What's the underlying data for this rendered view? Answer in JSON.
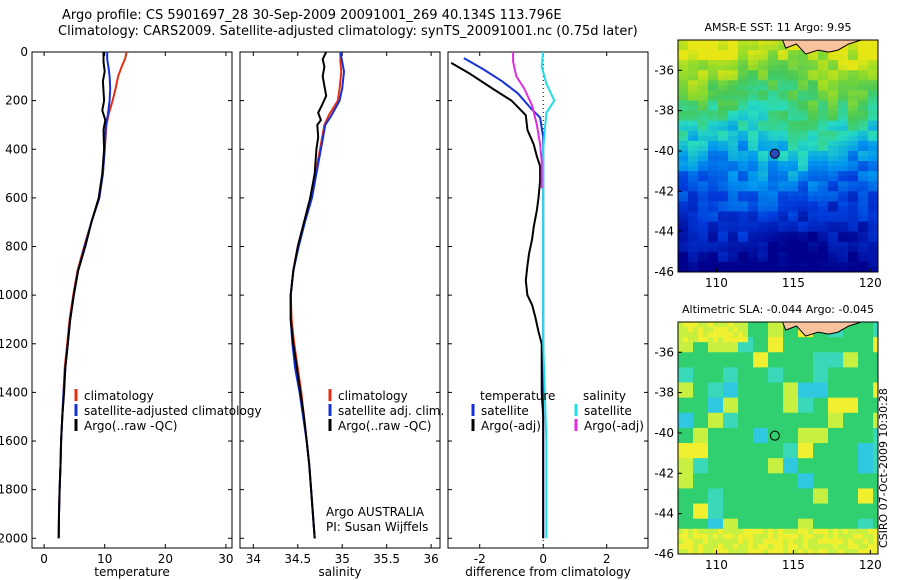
{
  "header": {
    "title_line1": "Argo profile: CS 5901697_28 30-Sep-2009 20091001_269 40.134S 113.796E",
    "title_line2": "Climatology: CARS2009. Satellite-adjusted climatology: synTS_20091001.nc (0.75d later)"
  },
  "colors": {
    "climatology": "#e52d14",
    "satellite": "#1532d8",
    "argo": "#000000",
    "sal_satellite": "#22dde8",
    "sal_argo": "#e02ce0",
    "land": "#f7c29c"
  },
  "chart_data": [
    {
      "type": "line",
      "xlabel": "temperature",
      "xlim": [
        -2,
        31
      ],
      "ylim": [
        2040,
        0
      ],
      "xticks": [
        0,
        10,
        20,
        30
      ],
      "yticks": [
        0,
        200,
        400,
        600,
        800,
        1000,
        1200,
        1400,
        1600,
        1800,
        2000
      ],
      "legend": [
        "climatology",
        "satellite-adjusted climatology",
        "Argo(..raw -QC)"
      ],
      "series": [
        {
          "name": "climatology",
          "color": "#e52d14",
          "points": [
            [
              13.6,
              0
            ],
            [
              13.4,
              25
            ],
            [
              12.8,
              60
            ],
            [
              12.2,
              100
            ],
            [
              11.8,
              150
            ],
            [
              11.3,
              200
            ],
            [
              10.6,
              260
            ],
            [
              10.3,
              300
            ],
            [
              10.0,
              400
            ],
            [
              9.7,
              500
            ],
            [
              9.1,
              600
            ],
            [
              7.8,
              700
            ],
            [
              6.6,
              800
            ],
            [
              5.5,
              900
            ],
            [
              4.8,
              1000
            ],
            [
              4.2,
              1100
            ],
            [
              3.8,
              1200
            ],
            [
              3.4,
              1300
            ],
            [
              3.2,
              1400
            ],
            [
              3.0,
              1500
            ],
            [
              2.8,
              1600
            ],
            [
              2.7,
              1700
            ],
            [
              2.55,
              1800
            ],
            [
              2.45,
              1900
            ],
            [
              2.4,
              2000
            ]
          ]
        },
        {
          "name": "satellite-adjusted climatology",
          "color": "#1532d8",
          "points": [
            [
              10.4,
              0
            ],
            [
              10.4,
              30
            ],
            [
              10.6,
              60
            ],
            [
              10.8,
              100
            ],
            [
              10.9,
              150
            ],
            [
              10.8,
              200
            ],
            [
              10.5,
              260
            ],
            [
              10.2,
              300
            ],
            [
              10.0,
              400
            ],
            [
              9.7,
              500
            ],
            [
              9.1,
              600
            ],
            [
              7.8,
              700
            ],
            [
              6.7,
              800
            ],
            [
              5.6,
              900
            ],
            [
              4.9,
              1000
            ],
            [
              4.3,
              1100
            ],
            [
              3.9,
              1200
            ],
            [
              3.5,
              1300
            ],
            [
              3.2,
              1400
            ],
            [
              3.0,
              1500
            ],
            [
              2.8,
              1600
            ],
            [
              2.7,
              1700
            ],
            [
              2.55,
              1800
            ],
            [
              2.45,
              1900
            ],
            [
              2.4,
              2000
            ]
          ]
        },
        {
          "name": "Argo(..raw -QC)",
          "color": "#000000",
          "points": [
            [
              9.8,
              0
            ],
            [
              9.8,
              40
            ],
            [
              10.0,
              80
            ],
            [
              9.7,
              120
            ],
            [
              9.8,
              160
            ],
            [
              9.9,
              200
            ],
            [
              9.6,
              240
            ],
            [
              10.1,
              280
            ],
            [
              9.8,
              320
            ],
            [
              9.9,
              400
            ],
            [
              9.6,
              500
            ],
            [
              9.0,
              600
            ],
            [
              7.8,
              700
            ],
            [
              6.8,
              800
            ],
            [
              5.6,
              900
            ],
            [
              4.9,
              1000
            ],
            [
              4.3,
              1100
            ],
            [
              3.9,
              1200
            ],
            [
              3.5,
              1300
            ],
            [
              3.3,
              1400
            ],
            [
              3.0,
              1500
            ],
            [
              2.8,
              1600
            ],
            [
              2.7,
              1700
            ],
            [
              2.55,
              1800
            ],
            [
              2.45,
              1900
            ],
            [
              2.4,
              2000
            ]
          ]
        }
      ]
    },
    {
      "type": "line",
      "xlabel": "salinity",
      "xlim": [
        33.85,
        36.1
      ],
      "ylim": [
        2040,
        0
      ],
      "xticks": [
        34,
        34.5,
        35,
        35.5,
        36
      ],
      "legend": [
        "climatology",
        "satellite adj. clim.",
        "Argo(..raw -QC)"
      ],
      "annotation": [
        "Argo AUSTRALIA",
        "PI: Susan Wijffels"
      ],
      "series": [
        {
          "name": "climatology",
          "color": "#e52d14",
          "points": [
            [
              34.98,
              0
            ],
            [
              34.98,
              40
            ],
            [
              34.99,
              80
            ],
            [
              34.97,
              150
            ],
            [
              34.95,
              200
            ],
            [
              34.85,
              260
            ],
            [
              34.8,
              300
            ],
            [
              34.75,
              400
            ],
            [
              34.7,
              500
            ],
            [
              34.65,
              600
            ],
            [
              34.57,
              700
            ],
            [
              34.5,
              800
            ],
            [
              34.45,
              900
            ],
            [
              34.42,
              1000
            ],
            [
              34.43,
              1100
            ],
            [
              34.46,
              1200
            ],
            [
              34.5,
              1300
            ],
            [
              34.54,
              1400
            ],
            [
              34.57,
              1500
            ],
            [
              34.6,
              1600
            ],
            [
              34.63,
              1700
            ],
            [
              34.65,
              1800
            ],
            [
              34.67,
              1900
            ],
            [
              34.69,
              2000
            ]
          ]
        },
        {
          "name": "satellite adj. clim.",
          "color": "#1532d8",
          "points": [
            [
              34.98,
              0
            ],
            [
              35.0,
              40
            ],
            [
              35.02,
              80
            ],
            [
              35.0,
              150
            ],
            [
              34.97,
              200
            ],
            [
              34.88,
              260
            ],
            [
              34.81,
              300
            ],
            [
              34.76,
              400
            ],
            [
              34.71,
              500
            ],
            [
              34.66,
              600
            ],
            [
              34.58,
              700
            ],
            [
              34.51,
              800
            ],
            [
              34.45,
              900
            ],
            [
              34.42,
              1000
            ],
            [
              34.42,
              1100
            ],
            [
              34.44,
              1200
            ],
            [
              34.47,
              1300
            ],
            [
              34.52,
              1400
            ],
            [
              34.56,
              1500
            ],
            [
              34.6,
              1600
            ],
            [
              34.63,
              1700
            ],
            [
              34.65,
              1800
            ],
            [
              34.67,
              1900
            ],
            [
              34.69,
              2000
            ]
          ]
        },
        {
          "name": "Argo(..raw -QC)",
          "color": "#000000",
          "points": [
            [
              34.82,
              0
            ],
            [
              34.78,
              30
            ],
            [
              34.8,
              60
            ],
            [
              34.78,
              100
            ],
            [
              34.8,
              140
            ],
            [
              34.82,
              180
            ],
            [
              34.77,
              220
            ],
            [
              34.73,
              250
            ],
            [
              34.76,
              280
            ],
            [
              34.72,
              300
            ],
            [
              34.73,
              350
            ],
            [
              34.71,
              400
            ],
            [
              34.69,
              500
            ],
            [
              34.64,
              600
            ],
            [
              34.57,
              700
            ],
            [
              34.5,
              800
            ],
            [
              34.45,
              900
            ],
            [
              34.42,
              1000
            ],
            [
              34.42,
              1100
            ],
            [
              34.45,
              1200
            ],
            [
              34.49,
              1300
            ],
            [
              34.53,
              1400
            ],
            [
              34.57,
              1500
            ],
            [
              34.6,
              1600
            ],
            [
              34.63,
              1700
            ],
            [
              34.65,
              1800
            ],
            [
              34.67,
              1900
            ],
            [
              34.69,
              2000
            ]
          ]
        }
      ]
    },
    {
      "type": "line",
      "xlabel": "difference from climatology",
      "xlim": [
        -3,
        3.3
      ],
      "ylim": [
        2040,
        0
      ],
      "xticks": [
        -2,
        0,
        2
      ],
      "legend_left_heading": "temperature",
      "legend_right_heading": "salinity",
      "legend": [
        "satellite",
        "Argo(-adj)",
        "satellite",
        "Argo(-adj)"
      ],
      "series": [
        {
          "name": "satellite",
          "group": "temperature",
          "color": "#1532d8",
          "points": [
            [
              -2.5,
              25
            ],
            [
              -1.9,
              70
            ],
            [
              -1.3,
              120
            ],
            [
              -0.8,
              170
            ],
            [
              -0.4,
              230
            ],
            [
              -0.1,
              270
            ],
            [
              0.0,
              350
            ],
            [
              0.0,
              600
            ],
            [
              0.0,
              1000
            ],
            [
              0.0,
              1400
            ],
            [
              0.0,
              2000
            ]
          ]
        },
        {
          "name": "Argo(-adj)",
          "group": "temperature",
          "color": "#000000",
          "points": [
            [
              -2.9,
              45
            ],
            [
              -2.3,
              90
            ],
            [
              -1.6,
              150
            ],
            [
              -1.0,
              200
            ],
            [
              -0.55,
              260
            ],
            [
              -0.5,
              320
            ],
            [
              -0.3,
              380
            ],
            [
              -0.2,
              430
            ],
            [
              -0.1,
              470
            ],
            [
              -0.1,
              530
            ],
            [
              -0.15,
              600
            ],
            [
              -0.2,
              650
            ],
            [
              -0.3,
              720
            ],
            [
              -0.35,
              770
            ],
            [
              -0.45,
              830
            ],
            [
              -0.5,
              880
            ],
            [
              -0.55,
              940
            ],
            [
              -0.5,
              1000
            ],
            [
              -0.35,
              1040
            ],
            [
              -0.25,
              1090
            ],
            [
              -0.15,
              1150
            ],
            [
              -0.05,
              1200
            ],
            [
              -0.05,
              1260
            ],
            [
              -0.05,
              1300
            ],
            [
              -0.05,
              1360
            ],
            [
              -0.05,
              1400
            ],
            [
              0.0,
              1500
            ],
            [
              0.0,
              1600
            ],
            [
              0.0,
              1700
            ],
            [
              0.0,
              1800
            ],
            [
              0.0,
              2000
            ]
          ]
        },
        {
          "name": "satellite",
          "group": "salinity",
          "color": "#22dde8",
          "points": [
            [
              0.0,
              0
            ],
            [
              -0.05,
              60
            ],
            [
              0.1,
              130
            ],
            [
              0.35,
              200
            ],
            [
              0.1,
              250
            ],
            [
              0.05,
              320
            ],
            [
              0.0,
              400
            ],
            [
              0.0,
              500
            ],
            [
              0.0,
              800
            ],
            [
              0.0,
              1200
            ],
            [
              0.05,
              1400
            ],
            [
              0.1,
              1600
            ],
            [
              0.1,
              1800
            ],
            [
              0.1,
              2000
            ]
          ]
        },
        {
          "name": "Argo(-adj)",
          "group": "salinity",
          "color": "#e02ce0",
          "points": [
            [
              -0.95,
              0
            ],
            [
              -0.95,
              40
            ],
            [
              -0.85,
              100
            ],
            [
              -0.6,
              150
            ],
            [
              -0.35,
              220
            ],
            [
              -0.2,
              300
            ],
            [
              -0.1,
              380
            ],
            [
              -0.05,
              450
            ],
            [
              -0.05,
              560
            ]
          ]
        }
      ]
    }
  ],
  "maps": [
    {
      "title": "AMSR-E SST: 11 Argo: 9.95",
      "lon_range": [
        107.5,
        120.5
      ],
      "lat_range": [
        -46,
        -34.5
      ],
      "xticks": [
        110,
        115,
        120
      ],
      "yticks": [
        -36,
        -38,
        -40,
        -42,
        -44,
        -46
      ],
      "marker": {
        "lon": 113.796,
        "lat": -40.134
      },
      "scheme": "sst"
    },
    {
      "title": "Altimetric SLA: -0.044 Argo: -0.045",
      "lon_range": [
        107.5,
        120.5
      ],
      "lat_range": [
        -46,
        -34.5
      ],
      "xticks": [
        110,
        115,
        120
      ],
      "yticks": [
        -36,
        -38,
        -40,
        -42,
        -44,
        -46
      ],
      "marker": {
        "lon": 113.796,
        "lat": -40.134
      },
      "scheme": "sla"
    }
  ],
  "footer": {
    "watermark": "CSIRO 07-Oct-2009 10:30:28"
  }
}
